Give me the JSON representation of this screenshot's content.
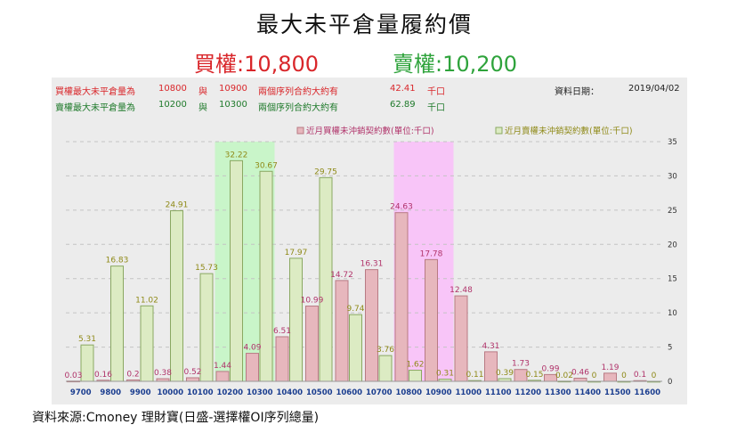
{
  "title": "最大未平倉量履約價",
  "call_heading": "買權:10,800",
  "put_heading": "賣權:10,200",
  "info": {
    "call_line": {
      "label": "買權最大未平倉量為",
      "strike_a": "10800",
      "connector": "與",
      "strike_b": "10900",
      "desc": "兩個序列合約大約有",
      "value": "42.41",
      "unit": "千口"
    },
    "put_line": {
      "label": "賣權最大未平倉量為",
      "strike_a": "10200",
      "connector": "與",
      "strike_b": "10300",
      "desc": "兩個序列合約大約有",
      "value": "62.89",
      "unit": "千口"
    },
    "date_label": "資料日期：",
    "date": "2019/04/02"
  },
  "source": "資料來源:Cmoney 理財寶(日盛-選擇權OI序列總量)",
  "colors": {
    "call_fill": "#e7b7bd",
    "call_stroke": "#b87a84",
    "call_label": "#b0336a",
    "put_fill": "#dcebc3",
    "put_stroke": "#8aa862",
    "put_label": "#8f8a18",
    "put_highlight": "#c9f5c9",
    "call_highlight": "#f8c5f8",
    "axis_label": "#1a3d8f",
    "call_text": "#d9262a",
    "put_text": "#2ea33b",
    "panel_bg": "#ececec"
  },
  "chart_data": {
    "type": "bar",
    "categories": [
      "9700",
      "9800",
      "9900",
      "10000",
      "10100",
      "10200",
      "10300",
      "10400",
      "10500",
      "10600",
      "10700",
      "10800",
      "10900",
      "11000",
      "11100",
      "11200",
      "11300",
      "11400",
      "11500",
      "11600"
    ],
    "series": [
      {
        "name": "近月買權未沖銷契約數(單位:千口)",
        "values": [
          0.03,
          0.16,
          0.2,
          0.38,
          0.52,
          1.44,
          4.09,
          6.51,
          10.99,
          14.72,
          16.31,
          24.63,
          17.78,
          12.48,
          4.31,
          1.73,
          0.99,
          0.46,
          1.19,
          0.1
        ]
      },
      {
        "name": "近月賣權未沖銷契約數(單位:千口)",
        "values": [
          5.31,
          16.83,
          11.02,
          24.91,
          15.73,
          32.22,
          30.67,
          17.97,
          29.75,
          9.74,
          3.76,
          1.62,
          0.31,
          0.11,
          0.39,
          0.15,
          0.02,
          0,
          0,
          0
        ]
      }
    ],
    "value_labels": {
      "call": [
        "0.03",
        "0.16",
        "0.2",
        "0.38",
        "0.52",
        "1.44",
        "4.09",
        "6.51",
        "10.99",
        "14.72",
        "16.31",
        "24.63",
        "17.78",
        "12.48",
        "4.31",
        "1.73",
        "0.99",
        "0.46",
        "1.19",
        "0.1"
      ],
      "put": [
        "5.31",
        "16.83",
        "11.02",
        "24.91",
        "15.73",
        "32.22",
        "30.67",
        "17.97",
        "29.75",
        "9.74",
        "3.76",
        "1.62",
        "0.31",
        "0.11",
        "0.39",
        "0.15",
        "0.02",
        "0",
        "0",
        "0"
      ]
    },
    "y_ticks": [
      "0",
      "5",
      "10",
      "15",
      "20",
      "25",
      "30",
      "35"
    ],
    "ylim": [
      0,
      35
    ],
    "highlight_put_categories": [
      "10200",
      "10300"
    ],
    "highlight_call_categories": [
      "10800",
      "10900"
    ],
    "legend_position": "top-right",
    "grid": true
  }
}
